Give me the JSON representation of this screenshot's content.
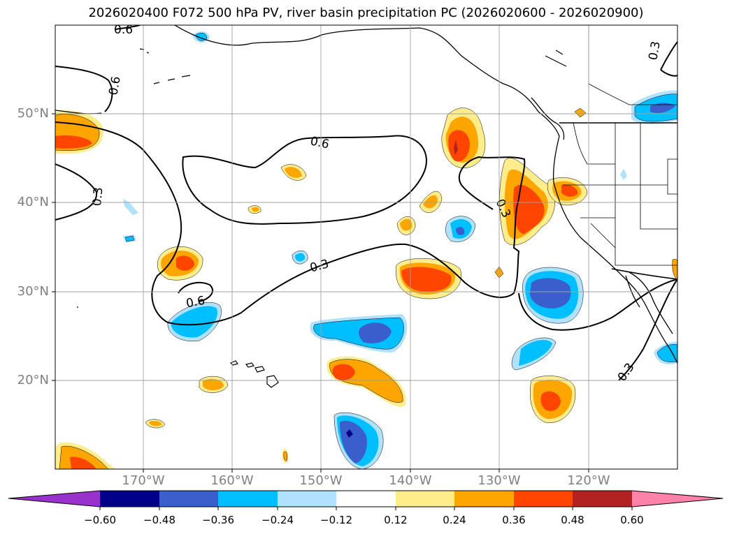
{
  "title": "2026020400 F072 500 hPa PV, river basin precipitation PC (2026020600 - 2026020900)",
  "axes": {
    "lat_labels": [
      "50°N",
      "40°N",
      "30°N",
      "20°N"
    ],
    "lon_labels": [
      "170°W",
      "160°W",
      "150°W",
      "140°W",
      "130°W",
      "120°W"
    ]
  },
  "contour_labels": [
    "0.6",
    "0.6",
    "0.6",
    "0.3",
    "0.3",
    "0.3",
    "0.3",
    "0.6",
    "0.3"
  ],
  "colorbar": {
    "ticks": [
      "−0.60",
      "−0.48",
      "−0.36",
      "−0.24",
      "−0.12",
      "0.12",
      "0.24",
      "0.36",
      "0.48",
      "0.60"
    ],
    "colors": [
      "#9932cc",
      "#00008b",
      "#3a5fcd",
      "#00bfff",
      "#b0e2ff",
      "#ffffff",
      "#ffec8b",
      "#ffa500",
      "#ff4500",
      "#b22222",
      "#ff82ab"
    ]
  },
  "colors": {
    "pos_light": "#ffec8b",
    "pos_mid": "#ffa500",
    "pos_strong": "#ff4500",
    "neg_light": "#b0e2ff",
    "neg_mid": "#00bfff",
    "neg_strong": "#3a5fcd",
    "neg_max": "#00008b"
  }
}
